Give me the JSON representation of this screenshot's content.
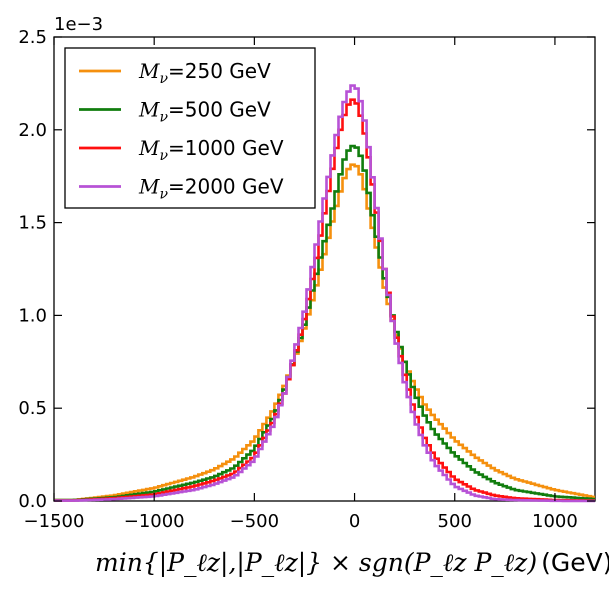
{
  "chart_data": {
    "type": "line",
    "style": "step-histogram",
    "title": "",
    "xlabel": "min{|P_ℓz|,|P_ℓz|} × sgn(P_ℓz P_ℓz)",
    "xlabel_unit": "(GeV)",
    "ylabel": "",
    "y_scale_label": "1e−3",
    "xlim": [
      -1500,
      1200
    ],
    "ylim": [
      0,
      2.5
    ],
    "x_ticks": [
      -1500,
      -1000,
      -500,
      0,
      500,
      1000
    ],
    "x_tick_labels": [
      "−1500",
      "−1000",
      "−500",
      "0",
      "500",
      "1000"
    ],
    "y_ticks": [
      0,
      0.5,
      1.0,
      1.5,
      2.0,
      2.5
    ],
    "y_tick_labels": [
      "0.0",
      "0.5",
      "1.0",
      "1.5",
      "2.0",
      "2.5"
    ],
    "grid": false,
    "legend_position": "top-left",
    "legend": {
      "prefix": "M",
      "subscript": "ν",
      "entries": [
        "=250 GeV",
        "=500 GeV",
        "=1000 GeV",
        "=2000 GeV"
      ]
    },
    "x": [
      -1400,
      -1200,
      -1000,
      -800,
      -700,
      -600,
      -500,
      -400,
      -350,
      -300,
      -250,
      -200,
      -150,
      -100,
      -75,
      -50,
      -25,
      0,
      25,
      50,
      75,
      100,
      150,
      200,
      250,
      300,
      350,
      400,
      500,
      600,
      700,
      800,
      1000,
      1200
    ],
    "series": [
      {
        "name": "M_ν=250 GeV",
        "color": "#f5900e",
        "values": [
          0.005,
          0.03,
          0.07,
          0.13,
          0.17,
          0.23,
          0.33,
          0.5,
          0.62,
          0.76,
          0.93,
          1.12,
          1.33,
          1.55,
          1.65,
          1.74,
          1.8,
          1.82,
          1.78,
          1.68,
          1.55,
          1.42,
          1.15,
          0.93,
          0.75,
          0.62,
          0.52,
          0.45,
          0.33,
          0.24,
          0.17,
          0.12,
          0.06,
          0.02
        ]
      },
      {
        "name": "M_ν=500 GeV",
        "color": "#117d0e",
        "values": [
          0.005,
          0.02,
          0.05,
          0.1,
          0.13,
          0.18,
          0.28,
          0.46,
          0.6,
          0.77,
          0.95,
          1.18,
          1.4,
          1.62,
          1.74,
          1.84,
          1.9,
          1.92,
          1.88,
          1.78,
          1.63,
          1.48,
          1.2,
          0.95,
          0.75,
          0.58,
          0.46,
          0.37,
          0.25,
          0.16,
          0.1,
          0.06,
          0.025,
          0.01
        ]
      },
      {
        "name": "M_ν=1000 GeV",
        "color": "#ff1010",
        "values": [
          0.003,
          0.015,
          0.035,
          0.08,
          0.11,
          0.15,
          0.24,
          0.44,
          0.58,
          0.77,
          0.98,
          1.25,
          1.55,
          1.85,
          1.98,
          2.08,
          2.15,
          2.17,
          2.1,
          1.98,
          1.82,
          1.63,
          1.25,
          0.93,
          0.68,
          0.48,
          0.34,
          0.24,
          0.12,
          0.06,
          0.03,
          0.015,
          0.005,
          0.002
        ]
      },
      {
        "name": "M_ν=2000 GeV",
        "color": "#b752d6",
        "values": [
          0.002,
          0.01,
          0.025,
          0.06,
          0.09,
          0.13,
          0.22,
          0.42,
          0.58,
          0.8,
          1.02,
          1.32,
          1.63,
          1.92,
          2.05,
          2.15,
          2.22,
          2.25,
          2.18,
          2.05,
          1.87,
          1.66,
          1.25,
          0.9,
          0.64,
          0.44,
          0.3,
          0.2,
          0.08,
          0.03,
          0.01,
          0.005,
          0.001,
          0.0
        ]
      }
    ]
  }
}
